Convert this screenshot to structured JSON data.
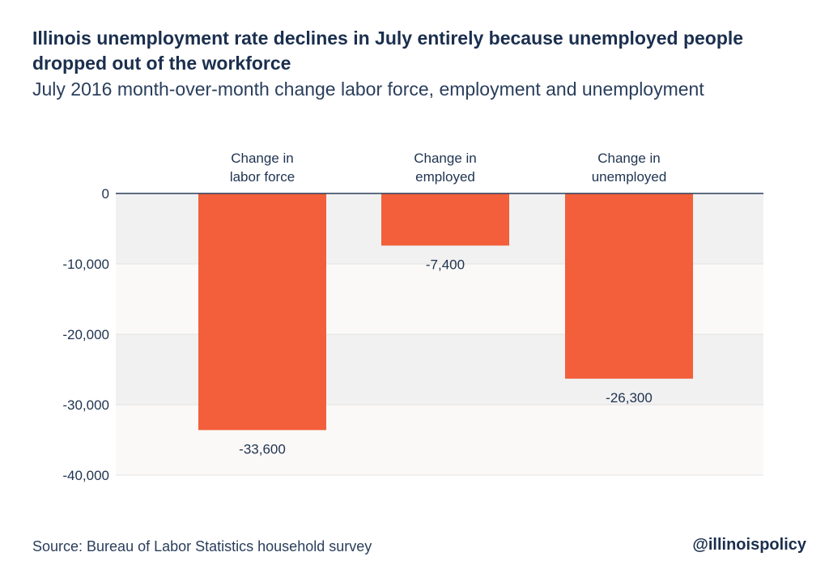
{
  "header": {
    "title": "Illinois unemployment rate declines in July entirely because unemployed people dropped out of the workforce",
    "subtitle": "July 2016 month-over-month change labor force, employment and unemployment"
  },
  "footer": {
    "source": "Source: Bureau of Labor Statistics household survey",
    "brand": "@illinoispolicy"
  },
  "colors": {
    "bar": "#f25f3a",
    "band_dark": "#f1f1f1",
    "band_light": "#faf9f7",
    "zero_line": "#2a3e5c",
    "text": "#1f3350"
  },
  "chart_data": {
    "type": "bar",
    "categories": [
      "Change in\nlabor force",
      "Change in\nemployed",
      "Change in\nunemployed"
    ],
    "values": [
      -33600,
      -7400,
      -26300
    ],
    "value_labels": [
      "-33,600",
      "-7,400",
      "-26,300"
    ],
    "title": "",
    "xlabel": "",
    "ylabel": "",
    "ylim": [
      -40000,
      0
    ],
    "yticks": [
      0,
      -10000,
      -20000,
      -30000,
      -40000
    ],
    "ytick_labels": [
      "0",
      "-10,000",
      "-20,000",
      "-30,000",
      "-40,000"
    ],
    "grid": true,
    "legend": "none"
  }
}
